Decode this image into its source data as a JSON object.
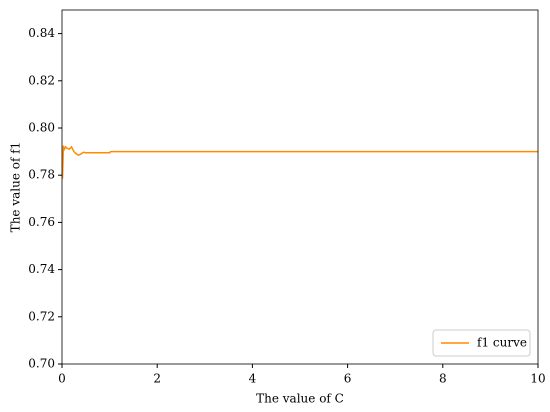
{
  "chart_data": {
    "type": "line",
    "x_label": "The value of C",
    "y_label": "The value of f1",
    "x": [
      0.01,
      0.03,
      0.05,
      0.08,
      0.1,
      0.15,
      0.2,
      0.25,
      0.3,
      0.35,
      0.4,
      0.45,
      0.5,
      0.6,
      0.8,
      1.0,
      1.02,
      2,
      4,
      6,
      8,
      10
    ],
    "series": [
      {
        "name": "f1 curve",
        "color": "#ff8c00",
        "values": [
          0.7785,
          0.7925,
          0.791,
          0.792,
          0.7915,
          0.791,
          0.792,
          0.79,
          0.789,
          0.7885,
          0.789,
          0.7897,
          0.7895,
          0.7895,
          0.7895,
          0.7895,
          0.79,
          0.79,
          0.79,
          0.79,
          0.79,
          0.79
        ]
      }
    ],
    "xlim": [
      0,
      10
    ],
    "ylim": [
      0.7,
      0.85
    ],
    "xticks": [
      0,
      2,
      4,
      6,
      8,
      10
    ],
    "yticks": [
      {
        "value": 0.7,
        "label": "0.70"
      },
      0.72,
      0.74,
      0.76,
      0.78,
      {
        "value": 0.8,
        "label": "0.80"
      },
      0.82,
      0.84
    ],
    "legend": "lower right",
    "grid": false
  }
}
